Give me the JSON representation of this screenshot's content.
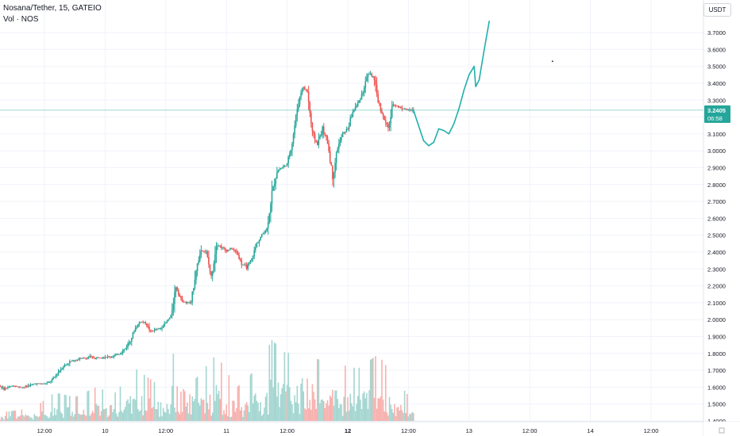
{
  "legend": {
    "symbol_line": "Nosana/Tether, 15, GATEIO",
    "volume_line": "Vol · NOS"
  },
  "currency_label": "USDT",
  "last_price": {
    "value": "3.2405",
    "countdown": "06:58",
    "color": "#26a69a"
  },
  "colors": {
    "up": "#26a69a",
    "down": "#ef5350",
    "up_vol": "#a5d6d1",
    "down_vol": "#f7b1ae",
    "grid": "#f0f3fa",
    "axis_text": "#131722",
    "drawing": "#1fb0ad"
  },
  "chart_data": {
    "type": "candlestick",
    "title": "Nosana/Tether, 15, GATEIO",
    "ylabel": "USDT",
    "ylim": [
      1.38,
      3.82
    ],
    "y_ticks": [
      "1.4000",
      "1.5000",
      "1.6000",
      "1.7000",
      "1.8000",
      "1.9000",
      "2.0000",
      "2.1000",
      "2.2000",
      "2.3000",
      "2.4000",
      "2.5000",
      "2.6000",
      "2.7000",
      "2.8000",
      "2.9000",
      "3.0000",
      "3.1000",
      "3.2000",
      "3.3000",
      "3.4000",
      "3.5000",
      "3.6000",
      "3.7000"
    ],
    "x_ticks": [
      "12:00",
      "10",
      "12:00",
      "11",
      "12:00",
      "12",
      "12:00",
      "13",
      "12:00",
      "14",
      "12:00"
    ],
    "x_tick_bold": [
      false,
      false,
      false,
      false,
      false,
      true,
      false,
      false,
      false,
      false,
      false
    ],
    "x_range_hours": [
      0,
      120
    ],
    "x_ticks_hours": [
      12,
      24,
      36,
      48,
      60,
      72,
      84,
      96,
      108,
      120,
      132
    ],
    "close_path": [
      [
        0,
        1.61
      ],
      [
        1,
        1.6
      ],
      [
        2,
        1.6
      ],
      [
        3,
        1.61
      ],
      [
        4,
        1.59
      ],
      [
        5,
        1.6
      ],
      [
        6,
        1.61
      ],
      [
        7,
        1.6
      ],
      [
        8,
        1.6
      ],
      [
        9,
        1.61
      ],
      [
        10,
        1.62
      ],
      [
        11,
        1.62
      ],
      [
        12,
        1.62
      ],
      [
        13,
        1.63
      ],
      [
        14,
        1.66
      ],
      [
        15,
        1.7
      ],
      [
        16,
        1.73
      ],
      [
        17,
        1.75
      ],
      [
        18,
        1.76
      ],
      [
        19,
        1.77
      ],
      [
        20,
        1.77
      ],
      [
        21,
        1.78
      ],
      [
        22,
        1.77
      ],
      [
        23,
        1.78
      ],
      [
        24,
        1.78
      ],
      [
        25,
        1.78
      ],
      [
        26,
        1.79
      ],
      [
        27,
        1.8
      ],
      [
        28,
        1.83
      ],
      [
        29,
        1.88
      ],
      [
        30,
        1.95
      ],
      [
        31,
        1.99
      ],
      [
        32,
        1.98
      ],
      [
        33,
        1.93
      ],
      [
        34,
        1.94
      ],
      [
        35,
        1.95
      ],
      [
        36,
        1.98
      ],
      [
        37,
        2.02
      ],
      [
        38,
        2.2
      ],
      [
        39,
        2.12
      ],
      [
        40,
        2.1
      ],
      [
        41,
        2.1
      ],
      [
        42,
        2.3
      ],
      [
        43,
        2.41
      ],
      [
        44,
        2.4
      ],
      [
        45,
        2.25
      ],
      [
        46,
        2.45
      ],
      [
        47,
        2.43
      ],
      [
        48,
        2.41
      ],
      [
        49,
        2.42
      ],
      [
        50,
        2.4
      ],
      [
        51,
        2.33
      ],
      [
        52,
        2.31
      ],
      [
        53,
        2.36
      ],
      [
        54,
        2.45
      ],
      [
        55,
        2.5
      ],
      [
        56,
        2.54
      ],
      [
        57,
        2.75
      ],
      [
        58,
        2.88
      ],
      [
        59,
        2.9
      ],
      [
        60,
        2.92
      ],
      [
        61,
        3.05
      ],
      [
        62,
        3.25
      ],
      [
        63,
        3.38
      ],
      [
        64,
        3.35
      ],
      [
        65,
        3.1
      ],
      [
        66,
        3.04
      ],
      [
        67,
        3.13
      ],
      [
        68,
        3.05
      ],
      [
        69,
        2.85
      ],
      [
        70,
        3.02
      ],
      [
        71,
        3.1
      ],
      [
        72,
        3.13
      ],
      [
        73,
        3.23
      ],
      [
        74,
        3.28
      ],
      [
        75,
        3.35
      ],
      [
        76,
        3.46
      ],
      [
        77,
        3.44
      ],
      [
        78,
        3.3
      ],
      [
        79,
        3.2
      ],
      [
        80,
        3.13
      ],
      [
        81,
        3.28
      ],
      [
        82,
        3.26
      ],
      [
        83,
        3.25
      ],
      [
        84,
        3.24
      ],
      [
        85,
        3.24
      ]
    ],
    "volume_ylim": [
      0,
      1
    ],
    "volume_profile": [
      [
        0,
        0.08
      ],
      [
        5,
        0.1
      ],
      [
        10,
        0.14
      ],
      [
        14,
        0.3
      ],
      [
        18,
        0.25
      ],
      [
        22,
        0.35
      ],
      [
        26,
        0.3
      ],
      [
        30,
        0.55
      ],
      [
        34,
        0.4
      ],
      [
        38,
        0.75
      ],
      [
        42,
        0.45
      ],
      [
        46,
        0.7
      ],
      [
        50,
        0.35
      ],
      [
        54,
        0.55
      ],
      [
        57,
        0.85
      ],
      [
        60,
        0.7
      ],
      [
        63,
        0.9
      ],
      [
        66,
        0.65
      ],
      [
        70,
        0.6
      ],
      [
        74,
        0.55
      ],
      [
        78,
        0.7
      ],
      [
        82,
        0.4
      ],
      [
        85,
        0.2
      ]
    ],
    "drawing_path": [
      [
        85,
        3.24
      ],
      [
        86,
        3.15
      ],
      [
        87,
        3.06
      ],
      [
        88,
        3.03
      ],
      [
        89,
        3.05
      ],
      [
        90,
        3.13
      ],
      [
        91,
        3.12
      ],
      [
        92,
        3.1
      ],
      [
        93,
        3.16
      ],
      [
        94,
        3.25
      ],
      [
        95,
        3.36
      ],
      [
        96,
        3.45
      ],
      [
        97,
        3.5
      ],
      [
        97.3,
        3.38
      ],
      [
        98,
        3.42
      ],
      [
        99,
        3.6
      ],
      [
        100,
        3.77
      ]
    ],
    "marker_point": [
      112.5,
      3.53
    ]
  }
}
